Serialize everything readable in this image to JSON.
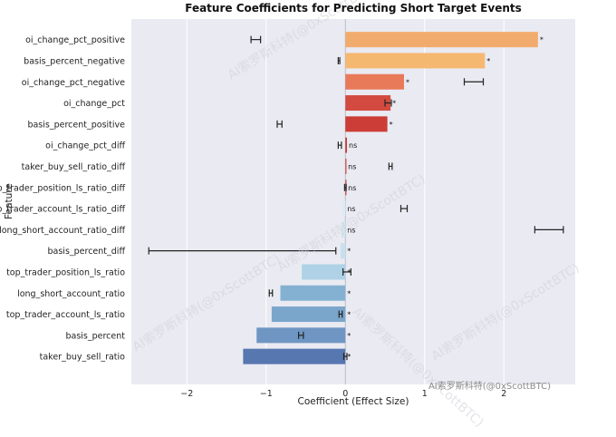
{
  "chart_data": {
    "type": "bar",
    "orientation": "horizontal",
    "title": "Feature Coefficients for Predicting Short Target Events",
    "xlabel": "Coefficient (Effect Size)",
    "ylabel": "Feature",
    "xlim": [
      -2.7,
      2.9
    ],
    "xticks": [
      -2,
      -1,
      0,
      1,
      2
    ],
    "xtick_labels": [
      "−2",
      "−1",
      "0",
      "1",
      "2"
    ],
    "grid": true,
    "zero_line": true,
    "categories": [
      "oi_change_pct_positive",
      "basis_percent_negative",
      "oi_change_pct_negative",
      "oi_change_pct",
      "basis_percent_positive",
      "oi_change_pct_diff",
      "taker_buy_sell_ratio_diff",
      "top_trader_position_ls_ratio_diff",
      "top_trader_account_ls_ratio_diff",
      "long_short_account_ratio_diff",
      "basis_percent_diff",
      "top_trader_position_ls_ratio",
      "long_short_account_ratio",
      "top_trader_account_ls_ratio",
      "basis_percent",
      "taker_buy_sell_ratio"
    ],
    "values": [
      2.43,
      1.76,
      0.74,
      0.57,
      0.53,
      0.02,
      0.01,
      0.01,
      -0.04,
      -0.05,
      -0.06,
      -0.55,
      -0.82,
      -0.93,
      -1.12,
      -1.29
    ],
    "error_bars": [
      {
        "center": -1.13,
        "half_width": 0.06
      },
      {
        "center": -0.08,
        "half_width": 0.01
      },
      {
        "center": 1.62,
        "half_width": 0.12
      },
      {
        "center": 0.54,
        "half_width": 0.04
      },
      {
        "center": -0.83,
        "half_width": 0.03
      },
      {
        "center": -0.07,
        "half_width": 0.02
      },
      {
        "center": 0.57,
        "half_width": 0.02
      },
      {
        "center": 0.0,
        "half_width": 0.01
      },
      {
        "center": 0.74,
        "half_width": 0.04
      },
      {
        "center": 2.57,
        "half_width": 0.18
      },
      {
        "center": -1.3,
        "half_width": 1.18
      },
      {
        "center": 0.02,
        "half_width": 0.05
      },
      {
        "center": -0.94,
        "half_width": 0.02
      },
      {
        "center": -0.06,
        "half_width": 0.02
      },
      {
        "center": -0.56,
        "half_width": 0.03
      },
      {
        "center": 0.0,
        "half_width": 0.02
      }
    ],
    "significance": [
      "*",
      "*",
      "*",
      "*",
      "*",
      "ns",
      "ns",
      "ns",
      "ns",
      "ns",
      "*",
      "*",
      "*",
      "*",
      "*",
      "*"
    ],
    "colors": [
      "#f1ac6d",
      "#f5b871",
      "#e87a5a",
      "#d34b40",
      "#cc3d37",
      "#c43b33",
      "#d2453c",
      "#c94039",
      "#dcebf1",
      "#cfe5ef",
      "#c7e0ec",
      "#afd2e6",
      "#84b1d1",
      "#7aa6cb",
      "#6f96c2",
      "#5677b0"
    ]
  },
  "watermarks": [
    "AI索罗斯科特(@0xScottBTC)",
    "AI索罗斯科特(@0xScottBTC)",
    "AI索罗斯科特(@0xScottBTC)",
    "AI索罗斯科特(@0xScottBTC)",
    "AI索罗斯科特(@0xScottBTC)"
  ],
  "credit": "AI索罗斯科特(@0xScottBTC)",
  "style": {
    "plot_bg": "#eaeaf2",
    "grid": "#ffffff",
    "zero_line": "#b8b8c4",
    "errorbar": "#222222"
  }
}
